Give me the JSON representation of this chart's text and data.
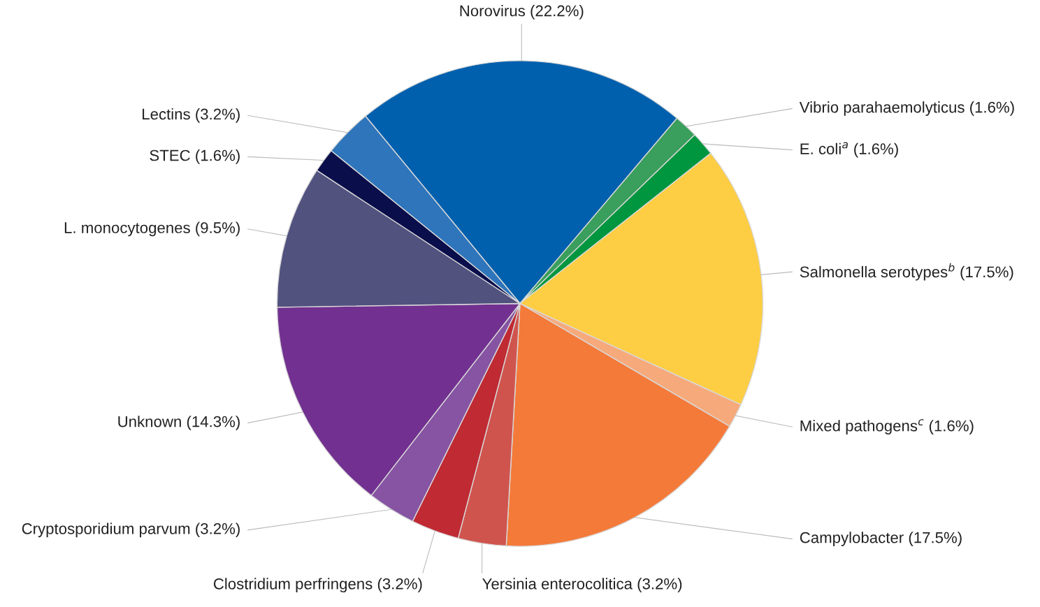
{
  "chart_data": {
    "type": "pie",
    "categories": [
      "Norovirus (22.2%)",
      "Vibrio parahaemolyticus (1.6%)",
      "E. coli$^{a}$ (1.6%)",
      "Salmonella serotypes$^{b}$ (17.5%)",
      "Mixed pathogens$^{c}$ (1.6%)",
      "Campylobacter (17.5%)",
      "Yersinia enterocolitica (3.2%)",
      "Clostridium perfringens (3.2%)",
      "Cryptosporidium parvum (3.2%)",
      "Unknown (14.3%)",
      "L. monocytogenes (9.5%)",
      "STEC (1.6%)",
      "Lectins (3.2%)"
    ],
    "values": [
      22.2,
      1.6,
      1.6,
      17.5,
      1.6,
      17.5,
      3.2,
      3.2,
      3.2,
      14.3,
      9.5,
      1.6,
      3.2
    ],
    "colors": [
      "#0060ae",
      "#3a9e5c",
      "#00963f",
      "#fdcd43",
      "#f6a97b",
      "#f47a3a",
      "#d0544e",
      "#c02a33",
      "#8654a3",
      "#723190",
      "#52527f",
      "#0a0e4b",
      "#2e75bb"
    ],
    "legend": false
  }
}
